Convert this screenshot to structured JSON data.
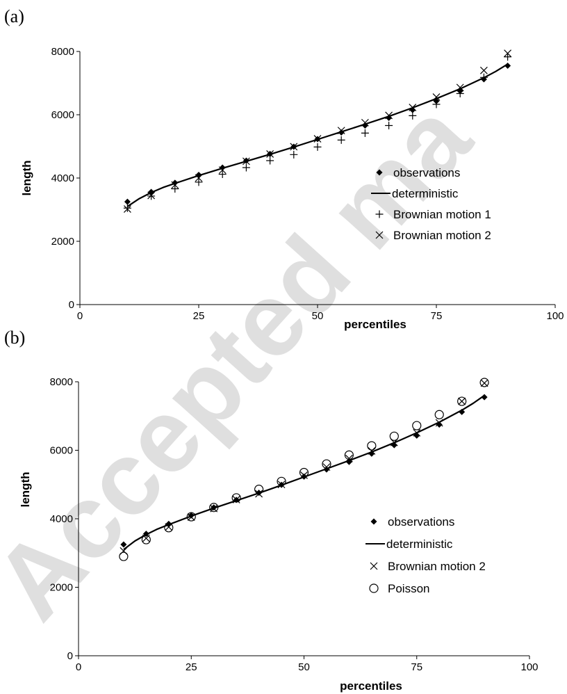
{
  "watermark": "Accepted ma",
  "chart_data": [
    {
      "type": "scatter",
      "panel_label": "(a)",
      "xlabel": "percentiles",
      "ylabel": "length",
      "xlim": [
        0,
        100
      ],
      "ylim": [
        0,
        8000
      ],
      "x_ticks": [
        "0",
        "25",
        "50",
        "75",
        "100"
      ],
      "y_ticks": [
        "0",
        "2000",
        "4000",
        "6000",
        "8000"
      ],
      "grid": false,
      "legend_position": "right",
      "series": [
        {
          "name": "observations",
          "marker": "diamond",
          "x": [
            10,
            15,
            20,
            25,
            30,
            35,
            40,
            45,
            50,
            55,
            60,
            65,
            70,
            75,
            80,
            85,
            90
          ],
          "y": [
            3250,
            3560,
            3850,
            4100,
            4330,
            4550,
            4760,
            4990,
            5230,
            5440,
            5660,
            5900,
            6150,
            6430,
            6750,
            7120,
            7550
          ]
        },
        {
          "name": "deterministic",
          "marker": "line",
          "x": [
            10,
            12.5,
            15,
            17.5,
            20,
            25,
            30,
            35,
            40,
            45,
            50,
            55,
            60,
            65,
            70,
            75,
            80,
            85,
            87.5,
            90
          ],
          "y": [
            3100,
            3350,
            3540,
            3700,
            3830,
            4080,
            4310,
            4530,
            4750,
            4980,
            5220,
            5460,
            5700,
            5950,
            6220,
            6510,
            6820,
            7170,
            7370,
            7600
          ]
        },
        {
          "name": "Brownian motion 1",
          "marker": "plus",
          "x": [
            10,
            15,
            20,
            25,
            30,
            35,
            40,
            45,
            50,
            55,
            60,
            65,
            70,
            75,
            80,
            85,
            90
          ],
          "y": [
            3050,
            3430,
            3660,
            3870,
            4120,
            4330,
            4550,
            4740,
            4980,
            5200,
            5420,
            5660,
            5970,
            6330,
            6670,
            7180,
            7830
          ]
        },
        {
          "name": "Brownian motion 2",
          "marker": "cross",
          "x": [
            10,
            15,
            20,
            25,
            30,
            35,
            40,
            45,
            50,
            55,
            60,
            65,
            70,
            75,
            80,
            85,
            90
          ],
          "y": [
            3020,
            3450,
            3780,
            4000,
            4250,
            4530,
            4760,
            4990,
            5240,
            5500,
            5750,
            5980,
            6230,
            6560,
            6860,
            7400,
            7940
          ]
        }
      ]
    },
    {
      "type": "scatter",
      "panel_label": "(b)",
      "xlabel": "percentiles",
      "ylabel": "length",
      "xlim": [
        0,
        100
      ],
      "ylim": [
        0,
        8000
      ],
      "x_ticks": [
        "0",
        "25",
        "50",
        "75",
        "100"
      ],
      "y_ticks": [
        "0",
        "2000",
        "4000",
        "6000",
        "8000"
      ],
      "grid": false,
      "legend_position": "right",
      "series": [
        {
          "name": "observations",
          "marker": "diamond",
          "x": [
            10,
            15,
            20,
            25,
            30,
            35,
            40,
            45,
            50,
            55,
            60,
            65,
            70,
            75,
            80,
            85,
            90
          ],
          "y": [
            3250,
            3560,
            3850,
            4100,
            4330,
            4550,
            4760,
            4990,
            5230,
            5440,
            5660,
            5900,
            6150,
            6430,
            6750,
            7120,
            7550
          ]
        },
        {
          "name": "deterministic",
          "marker": "line",
          "x": [
            10,
            12.5,
            15,
            17.5,
            20,
            25,
            30,
            35,
            40,
            45,
            50,
            55,
            60,
            65,
            70,
            75,
            80,
            85,
            87.5,
            90
          ],
          "y": [
            3100,
            3350,
            3540,
            3700,
            3830,
            4080,
            4310,
            4530,
            4750,
            4980,
            5220,
            5460,
            5700,
            5950,
            6220,
            6510,
            6820,
            7170,
            7370,
            7600
          ]
        },
        {
          "name": "Brownian motion 2",
          "marker": "cross",
          "x": [
            10,
            15,
            20,
            25,
            30,
            35,
            40,
            45,
            50,
            55,
            60,
            65,
            70,
            75,
            80,
            85,
            90
          ],
          "y": [
            3060,
            3430,
            3760,
            4050,
            4300,
            4560,
            4730,
            5000,
            5270,
            5510,
            5760,
            5980,
            6230,
            6510,
            6800,
            7430,
            7960
          ]
        },
        {
          "name": "Poisson",
          "marker": "circle",
          "x": [
            10,
            15,
            20,
            25,
            30,
            35,
            40,
            45,
            50,
            55,
            60,
            65,
            70,
            75,
            80,
            85,
            90
          ],
          "y": [
            2900,
            3390,
            3740,
            4060,
            4330,
            4610,
            4860,
            5090,
            5350,
            5600,
            5860,
            6130,
            6410,
            6720,
            7040,
            7430,
            7980
          ]
        }
      ]
    }
  ]
}
